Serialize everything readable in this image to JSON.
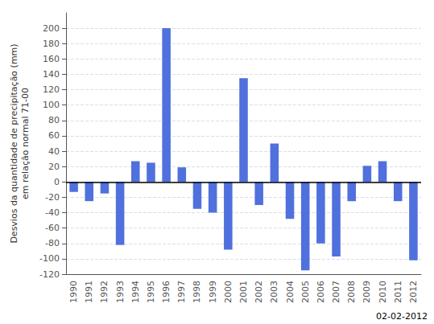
{
  "chart_data": {
    "type": "bar",
    "categories": [
      "1990",
      "1991",
      "1992",
      "1993",
      "1994",
      "1995",
      "1996",
      "1997",
      "1998",
      "1999",
      "2000",
      "2001",
      "2002",
      "2003",
      "2004",
      "2005",
      "2006",
      "2007",
      "2008",
      "2009",
      "2010",
      "2011",
      "2012"
    ],
    "values": [
      -13,
      -25,
      -15,
      -82,
      27,
      25,
      200,
      19,
      -35,
      -40,
      -88,
      135,
      -30,
      50,
      -48,
      -115,
      -80,
      -97,
      -25,
      21,
      27,
      -25,
      -102
    ],
    "ylabel": "Desvios da quantidade de precipitação (mm)\nem relação normal 71-00",
    "ylim": [
      -120,
      220
    ],
    "yticks": [
      -120,
      -100,
      -80,
      -60,
      -40,
      -20,
      0,
      20,
      40,
      60,
      80,
      100,
      120,
      140,
      160,
      180,
      200
    ],
    "annotation": "02-02-2012",
    "grid": true
  }
}
